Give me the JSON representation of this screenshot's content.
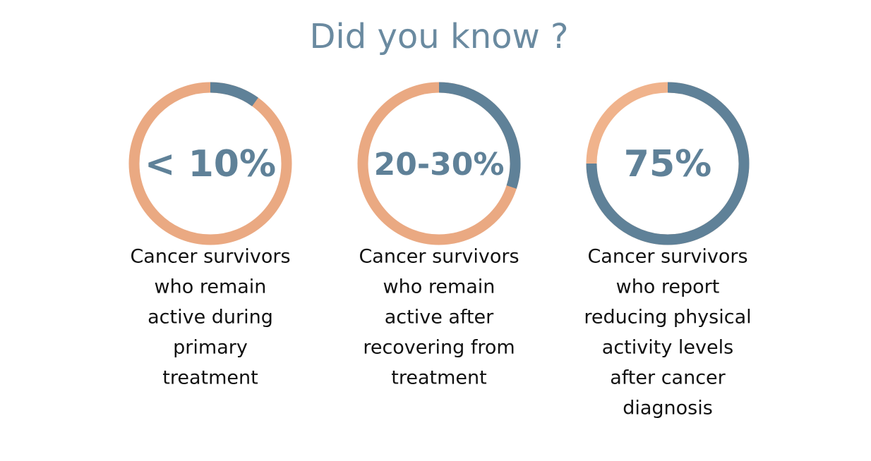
{
  "title": "Did you know ?",
  "chart_data": [
    {
      "type": "donut",
      "values": [
        10
      ],
      "value_labels": [
        "< 10%"
      ],
      "color": "#5f8198",
      "track_color": "#eaa982",
      "caption": [
        "Cancer survivors",
        "who remain",
        "active during",
        "primary",
        "treatment"
      ]
    },
    {
      "type": "donut",
      "values": [
        30
      ],
      "value_labels": [
        "20-30%"
      ],
      "color": "#5f8198",
      "track_color": "#eaa982",
      "caption": [
        "Cancer survivors",
        "who remain",
        "active after",
        "recovering from",
        "treatment"
      ]
    },
    {
      "type": "donut",
      "values": [
        75
      ],
      "value_labels": [
        "75%"
      ],
      "color": "#5f8198",
      "track_color": "#f0b38c",
      "caption": [
        "Cancer survivors",
        "who report",
        "reducing physical",
        "activity levels",
        "after cancer",
        "diagnosis"
      ]
    }
  ]
}
